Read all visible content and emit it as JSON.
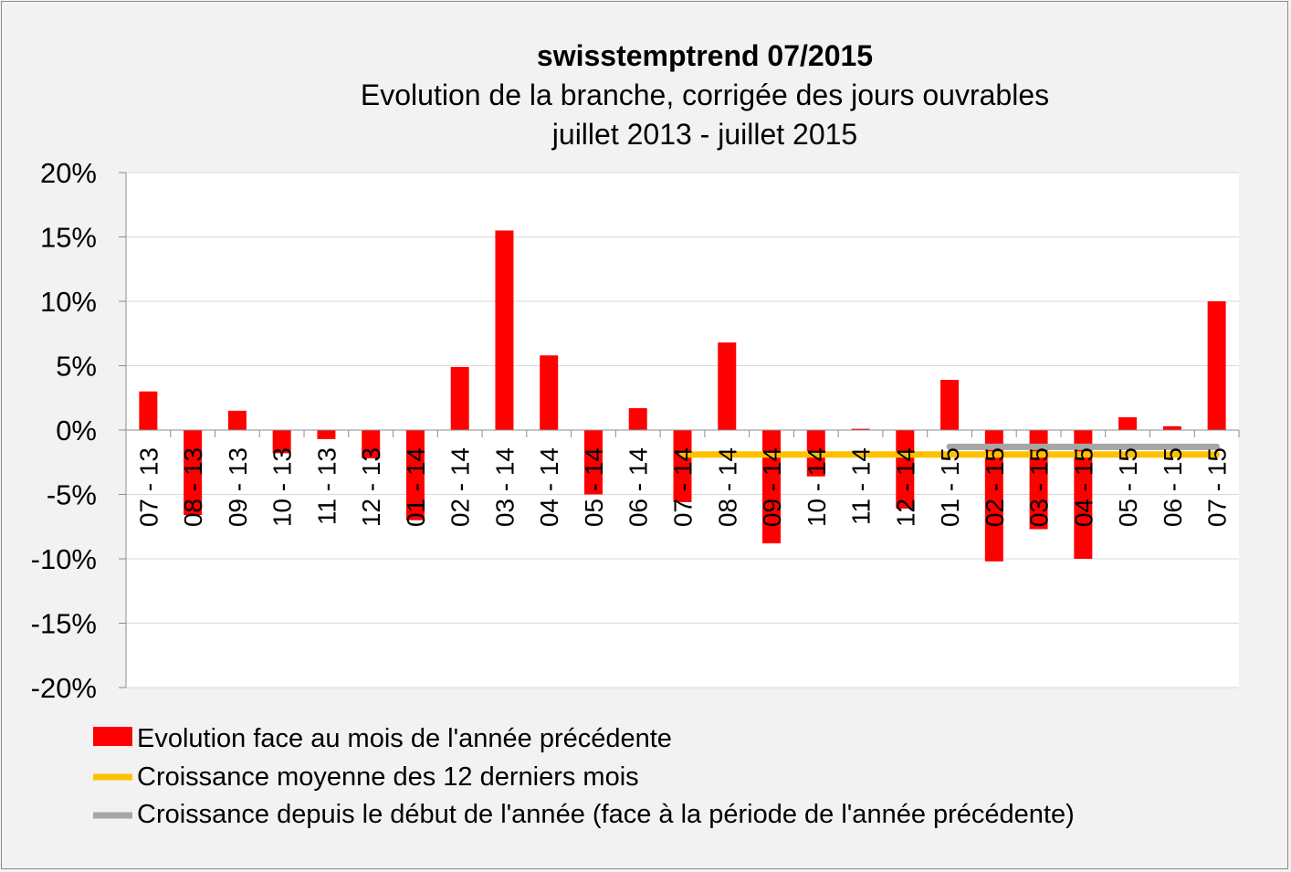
{
  "chart_data": {
    "type": "bar",
    "title": "swisstemptrend 07/2015",
    "subtitle_lines": [
      "Evolution de la branche, corrigée des jours ouvrables",
      "juillet 2013 - juillet 2015"
    ],
    "categories": [
      "07 - 13",
      "08 - 13",
      "09 - 13",
      "10 - 13",
      "11 - 13",
      "12 - 13",
      "01 - 14",
      "02 - 14",
      "03 - 14",
      "04 - 14",
      "05 - 14",
      "06 - 14",
      "07 - 14",
      "08 - 14",
      "09 - 14",
      "10 - 14",
      "11 - 14",
      "12 - 14",
      "01 - 15",
      "02 - 15",
      "03 - 15",
      "04 - 15",
      "05 - 15",
      "06 - 15",
      "07 - 15"
    ],
    "series": [
      {
        "name": "Evolution face au mois de l'année précédente",
        "type": "bar",
        "color": "#ff0000",
        "values": [
          3.0,
          -6.6,
          1.5,
          -1.8,
          -0.7,
          -2.2,
          -7.0,
          4.9,
          15.5,
          5.8,
          -5.0,
          1.7,
          -5.6,
          6.8,
          -8.8,
          -3.6,
          0.1,
          -6.1,
          3.9,
          -10.2,
          -7.7,
          -10.0,
          1.0,
          0.3,
          10.0
        ]
      },
      {
        "name": "Croissance moyenne des 12 derniers mois",
        "type": "line",
        "color": "#ffc000",
        "from": "07 - 14",
        "to": "07 - 15",
        "value": -1.9
      },
      {
        "name": "Croissance depuis le début de l'année (face à la période de l'année précédente)",
        "type": "line",
        "color": "#a6a6a6",
        "from": "01 - 15",
        "to": "07 - 15",
        "value": -1.3
      }
    ],
    "yticks": [
      20,
      15,
      10,
      5,
      0,
      -5,
      -10,
      -15,
      -20
    ],
    "ytick_labels": [
      "20%",
      "15%",
      "10%",
      "5%",
      "0%",
      "-5%",
      "-10%",
      "-15%",
      "-20%"
    ],
    "ylim": [
      -20,
      20
    ],
    "grid": true,
    "legend_position": "bottom-left"
  }
}
